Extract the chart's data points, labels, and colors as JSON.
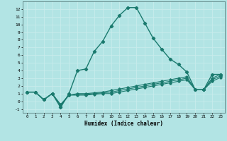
{
  "xlabel": "Humidex (Indice chaleur)",
  "bg_color": "#b2e4e4",
  "grid_color": "#c8ecec",
  "line_color": "#1a7a6e",
  "xlim": [
    -0.5,
    23.5
  ],
  "ylim": [
    -1.5,
    13.0
  ],
  "xticks": [
    0,
    1,
    2,
    3,
    4,
    5,
    6,
    7,
    8,
    9,
    10,
    11,
    12,
    13,
    14,
    15,
    16,
    17,
    18,
    19,
    20,
    21,
    22,
    23
  ],
  "yticks": [
    -1,
    0,
    1,
    2,
    3,
    4,
    5,
    6,
    7,
    8,
    9,
    10,
    11,
    12
  ],
  "series": [
    [
      1.2,
      1.2,
      0.2,
      1.0,
      -0.8,
      1.0,
      4.0,
      4.2,
      6.5,
      7.8,
      9.8,
      11.2,
      12.2,
      12.2,
      10.2,
      8.2,
      6.8,
      5.5,
      4.8,
      3.8,
      1.5,
      1.5,
      3.5,
      3.5
    ],
    [
      1.2,
      1.2,
      0.2,
      1.0,
      -0.6,
      0.8,
      1.0,
      1.0,
      1.1,
      1.2,
      1.4,
      1.6,
      1.8,
      2.0,
      2.2,
      2.4,
      2.6,
      2.8,
      3.0,
      3.2,
      1.5,
      1.5,
      3.0,
      3.5
    ],
    [
      1.2,
      1.2,
      0.2,
      1.0,
      -0.5,
      0.8,
      0.9,
      0.9,
      1.0,
      1.1,
      1.2,
      1.4,
      1.6,
      1.8,
      2.0,
      2.2,
      2.4,
      2.6,
      2.8,
      3.0,
      1.5,
      1.5,
      2.8,
      3.3
    ],
    [
      1.2,
      1.2,
      0.2,
      1.0,
      -0.4,
      0.8,
      0.8,
      0.8,
      0.9,
      1.0,
      1.0,
      1.2,
      1.4,
      1.6,
      1.8,
      2.0,
      2.2,
      2.4,
      2.6,
      2.8,
      1.5,
      1.5,
      2.6,
      3.1
    ]
  ]
}
